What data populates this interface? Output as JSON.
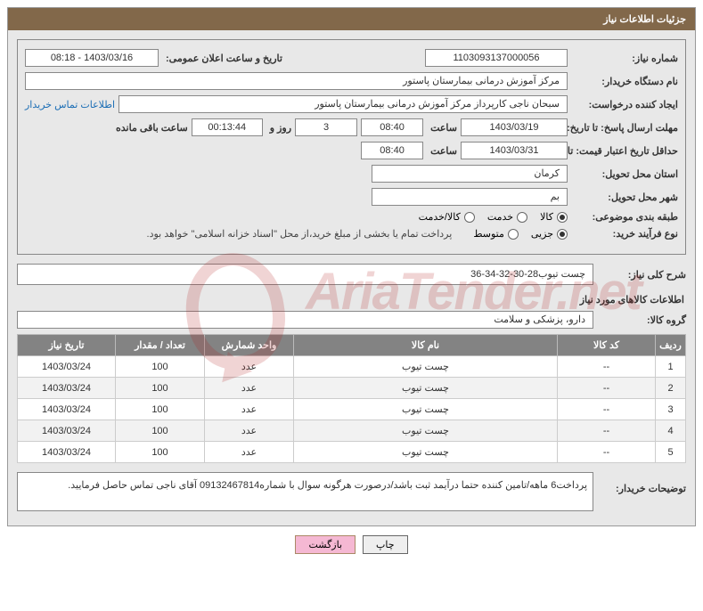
{
  "header": {
    "title": "جزئیات اطلاعات نیاز"
  },
  "fields": {
    "need_number_label": "شماره نیاز:",
    "need_number": "1103093137000056",
    "announce_label": "تاریخ و ساعت اعلان عمومی:",
    "announce_value": "1403/03/16 - 08:18",
    "buyer_label": "نام دستگاه خریدار:",
    "buyer_value": "مرکز آموزش درمانی بیمارستان پاستور",
    "requester_label": "ایجاد کننده درخواست:",
    "requester_value": "سبحان ناجی کارپرداز مرکز آموزش درمانی بیمارستان پاستور",
    "contact_link": "اطلاعات تماس خریدار",
    "deadline_label": "مهلت ارسال پاسخ: تا تاریخ:",
    "deadline_date": "1403/03/19",
    "time_label": "ساعت",
    "deadline_time": "08:40",
    "days_value": "3",
    "days_and": "روز و",
    "countdown": "00:13:44",
    "remaining_label": "ساعت باقی مانده",
    "validity_label": "حداقل تاریخ اعتبار قیمت: تا تاریخ:",
    "validity_date": "1403/03/31",
    "validity_time": "08:40",
    "province_label": "استان محل تحویل:",
    "province_value": "کرمان",
    "city_label": "شهر محل تحویل:",
    "city_value": "بم",
    "category_label": "طبقه بندی موضوعی:",
    "radio_kala": "کالا",
    "radio_khadamat": "خدمت",
    "radio_kalakhadmat": "کالا/خدمت",
    "process_label": "نوع فرآیند خرید:",
    "radio_jozi": "جزیی",
    "radio_motevaset": "متوسط",
    "payment_note": "پرداخت تمام یا بخشی از مبلغ خرید،از محل \"اسناد خزانه اسلامی\" خواهد بود.",
    "desc_label": "شرح کلی نیاز:",
    "desc_value": "چست تیوب28-30-32-34-36",
    "goods_info_title": "اطلاعات کالاهای مورد نیاز",
    "group_label": "گروه کالا:",
    "group_value": "دارو، پزشکی و سلامت",
    "buyer_notes_label": "توضیحات خریدار:",
    "buyer_notes_value": "پرداخت6 ماهه/تامین کننده حتما درآیمد ثبت باشد/درصورت هرگونه سوال با شماره09132467814 آقای ناجی تماس حاصل فرمایید."
  },
  "table": {
    "headers": {
      "row": "ردیف",
      "code": "کد کالا",
      "name": "نام کالا",
      "unit": "واحد شمارش",
      "qty": "تعداد / مقدار",
      "date": "تاریخ نیاز"
    },
    "col_widths": {
      "row": "34px",
      "code": "110px",
      "name": "auto",
      "unit": "100px",
      "qty": "100px",
      "date": "110px"
    },
    "rows": [
      {
        "n": "1",
        "code": "--",
        "name": "چست تیوب",
        "unit": "عدد",
        "qty": "100",
        "date": "1403/03/24"
      },
      {
        "n": "2",
        "code": "--",
        "name": "چست تیوب",
        "unit": "عدد",
        "qty": "100",
        "date": "1403/03/24"
      },
      {
        "n": "3",
        "code": "--",
        "name": "چست تیوب",
        "unit": "عدد",
        "qty": "100",
        "date": "1403/03/24"
      },
      {
        "n": "4",
        "code": "--",
        "name": "چست تیوب",
        "unit": "عدد",
        "qty": "100",
        "date": "1403/03/24"
      },
      {
        "n": "5",
        "code": "--",
        "name": "چست تیوب",
        "unit": "عدد",
        "qty": "100",
        "date": "1403/03/24"
      }
    ]
  },
  "buttons": {
    "print": "چاپ",
    "back": "بازگشت"
  },
  "watermark": {
    "text": "AriaTender.net"
  },
  "colors": {
    "header_bg": "#82684a",
    "header_fg": "#ffffff",
    "panel_bg": "#e8e8e8",
    "border": "#888888",
    "th_bg": "#838383",
    "link": "#1a6db5",
    "btn_pink": "#f5b8d3",
    "watermark": "#b01717"
  }
}
